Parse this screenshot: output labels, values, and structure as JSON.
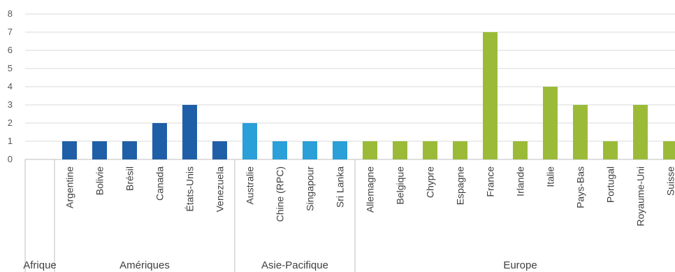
{
  "chart_data": {
    "type": "bar",
    "ylim": [
      0,
      8
    ],
    "yticks": [
      0,
      1,
      2,
      3,
      4,
      5,
      6,
      7,
      8
    ],
    "grid": true,
    "legend": "none",
    "groups": [
      {
        "name": "Afrique",
        "color": "#1f5fa8",
        "categories": [],
        "values": []
      },
      {
        "name": "Amériques",
        "color": "#1f5fa8",
        "categories": [
          "Argentine",
          "Bolivie",
          "Brésil",
          "Canada",
          "États-Unis",
          "Venezuela"
        ],
        "values": [
          1,
          1,
          1,
          2,
          3,
          1
        ]
      },
      {
        "name": "Asie-Pacifique",
        "color": "#2a9fd8",
        "categories": [
          "Australie",
          "Chine (RPC)",
          "Singapour",
          "Sri Lanka"
        ],
        "values": [
          2,
          1,
          1,
          1
        ]
      },
      {
        "name": "Europe",
        "color": "#9bbb38",
        "categories": [
          "Allemagne",
          "Belgique",
          "Chypre",
          "Espagne",
          "France",
          "Irlande",
          "Italie",
          "Pays-Bas",
          "Portugal",
          "Royaume-Uni",
          "Suisse"
        ],
        "values": [
          1,
          1,
          1,
          1,
          7,
          1,
          4,
          3,
          1,
          3,
          1
        ]
      }
    ]
  }
}
